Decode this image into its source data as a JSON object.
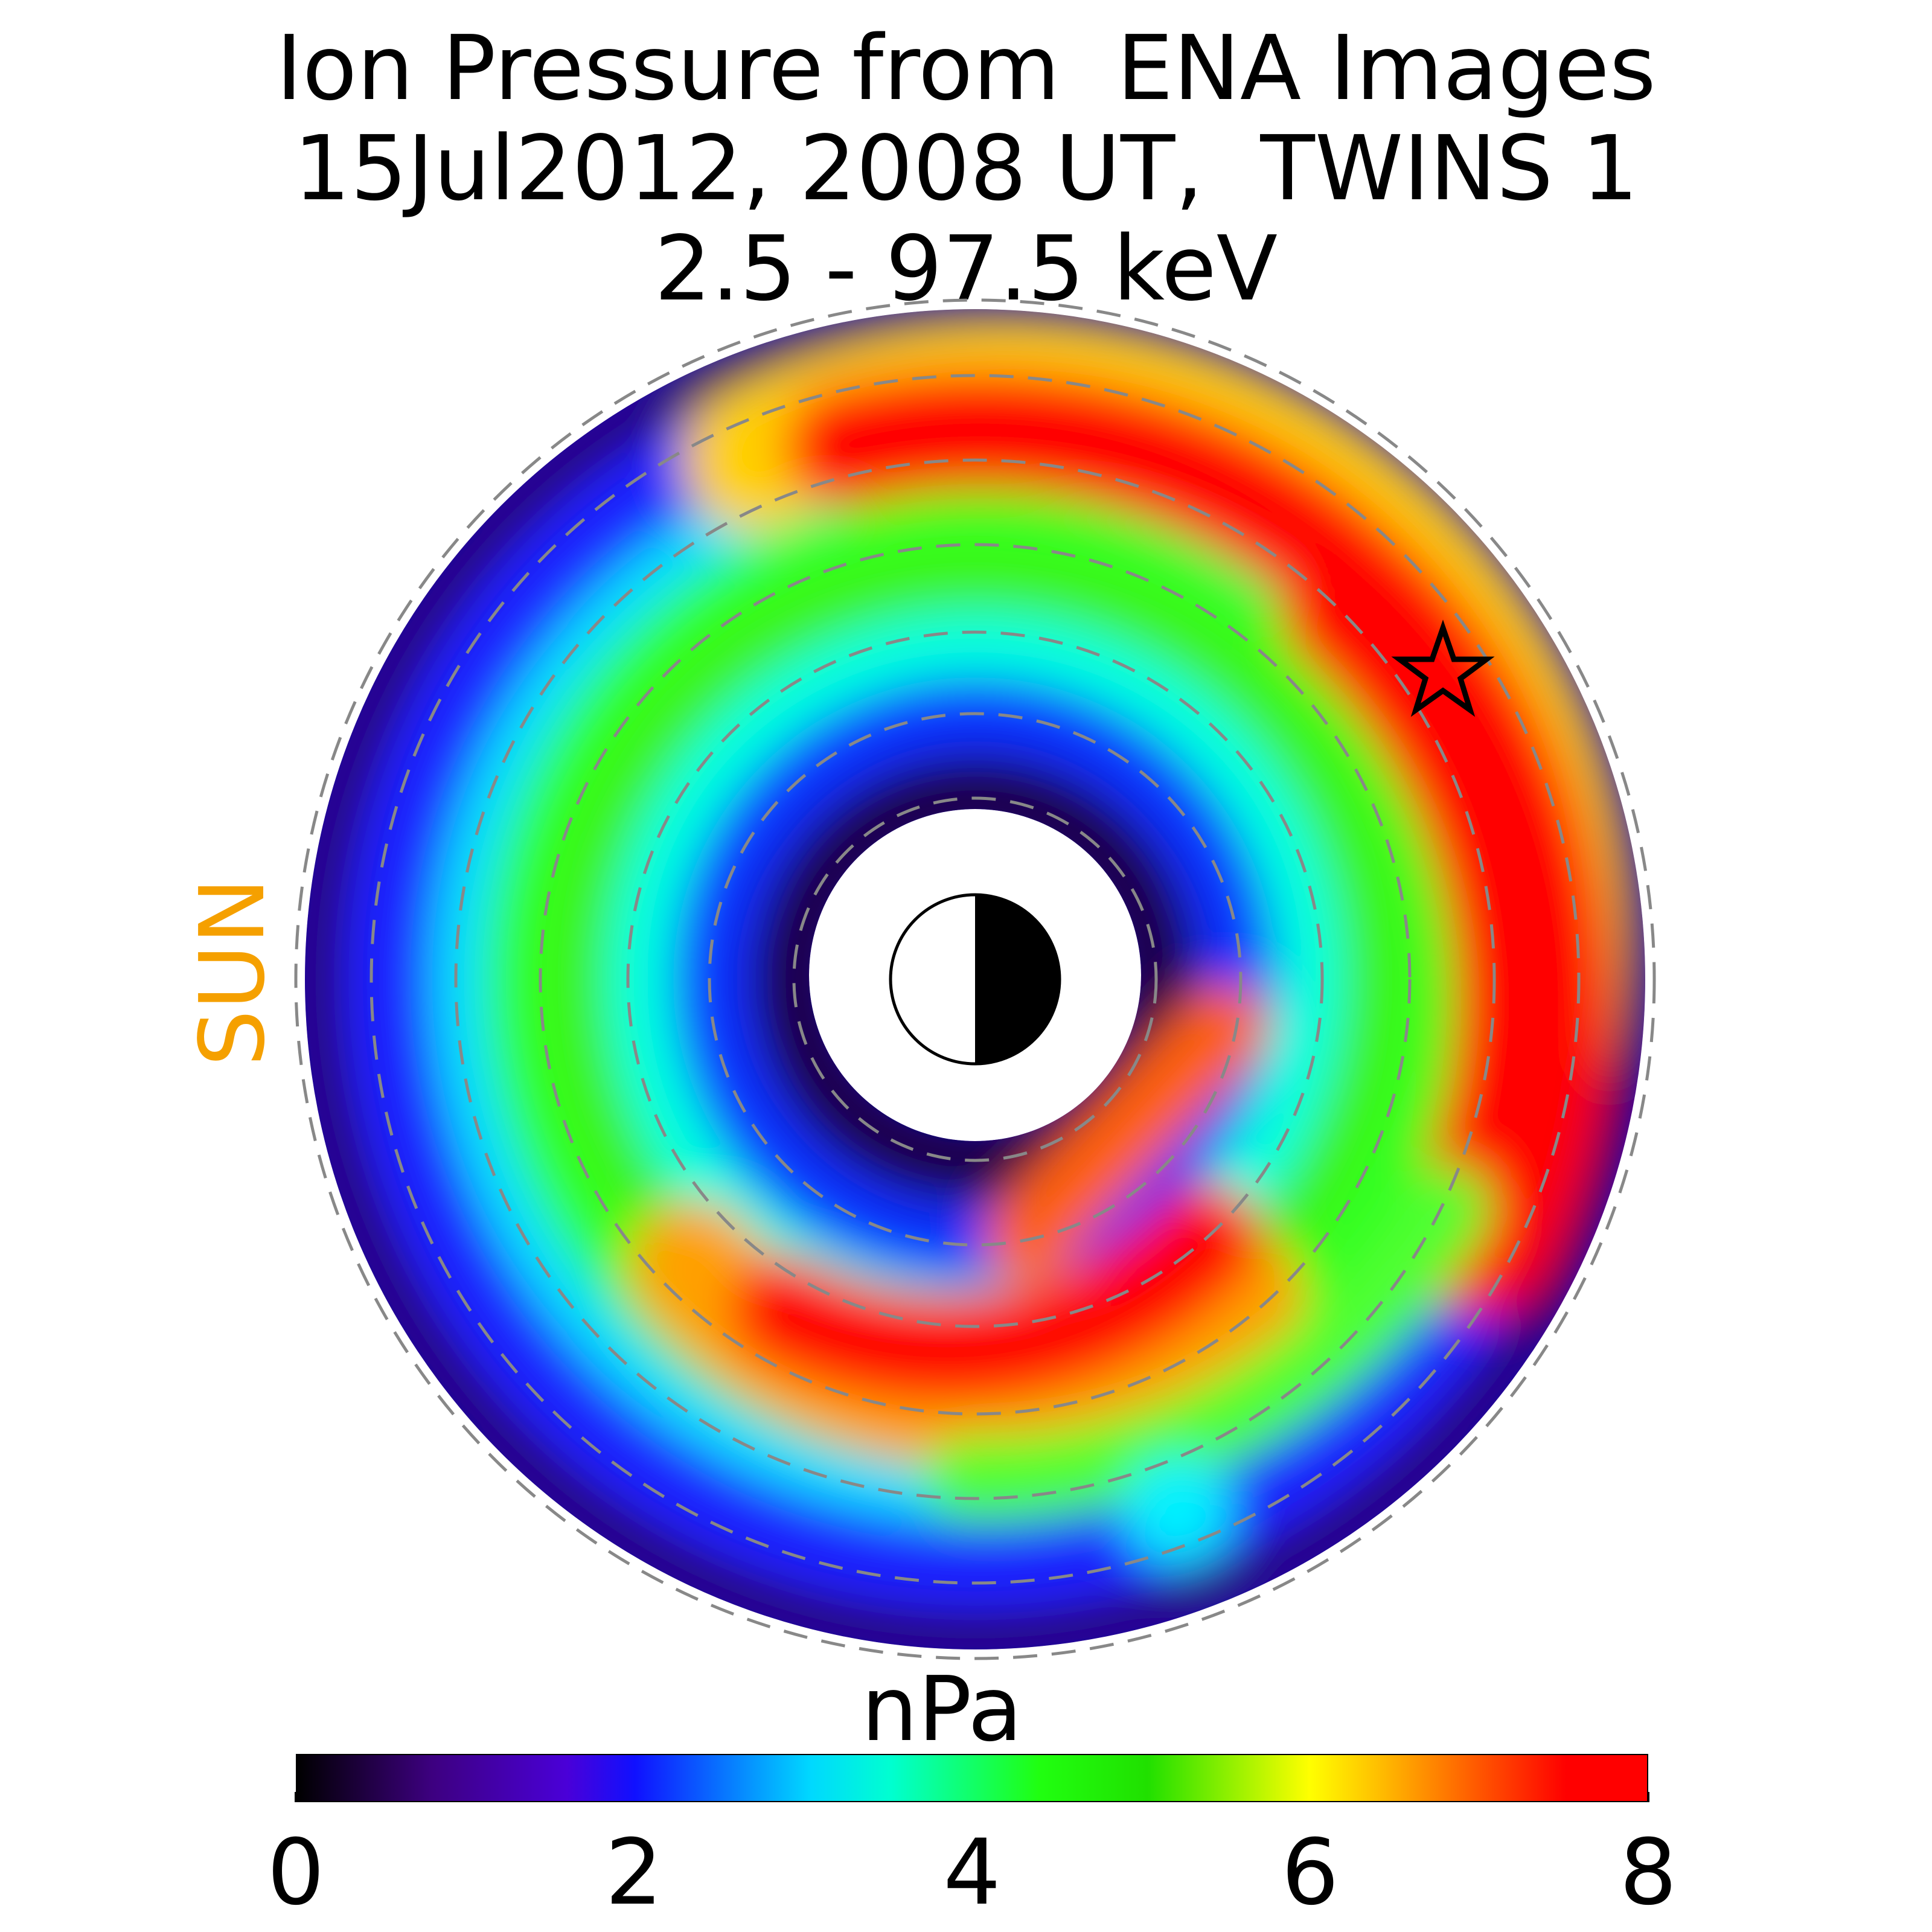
{
  "chart_data": {
    "type": "heatmap",
    "title": [
      "Ion Pressure from  ENA Images",
      "15Jul2012, 2008 UT,  TWINS 1",
      "2.5 - 97.5 keV"
    ],
    "side_label": "SUN",
    "colorbar": {
      "unit": "nPa",
      "range": [
        0,
        8
      ],
      "ticks": [
        "0",
        "2",
        "4",
        "6",
        "8"
      ],
      "colormap": "rainbow (black-purple-blue-cyan-green-yellow-red)"
    },
    "marker": "star",
    "earth": "half-lit (sun side white, night side black)",
    "grid": "dashed circles",
    "regions": [
      {
        "location": "outer ring, dawn/dusk flank",
        "pressure_nPa": 0.5
      },
      {
        "location": "dusk-side arc (upper/right)",
        "pressure_nPa": 8
      },
      {
        "location": "night-side inner arc (lower)",
        "pressure_nPa": 8
      },
      {
        "location": "inner ring near Earth",
        "pressure_nPa": 1
      }
    ]
  },
  "colors": {
    "sun_label": "#f5a000",
    "grid": "#888888"
  }
}
